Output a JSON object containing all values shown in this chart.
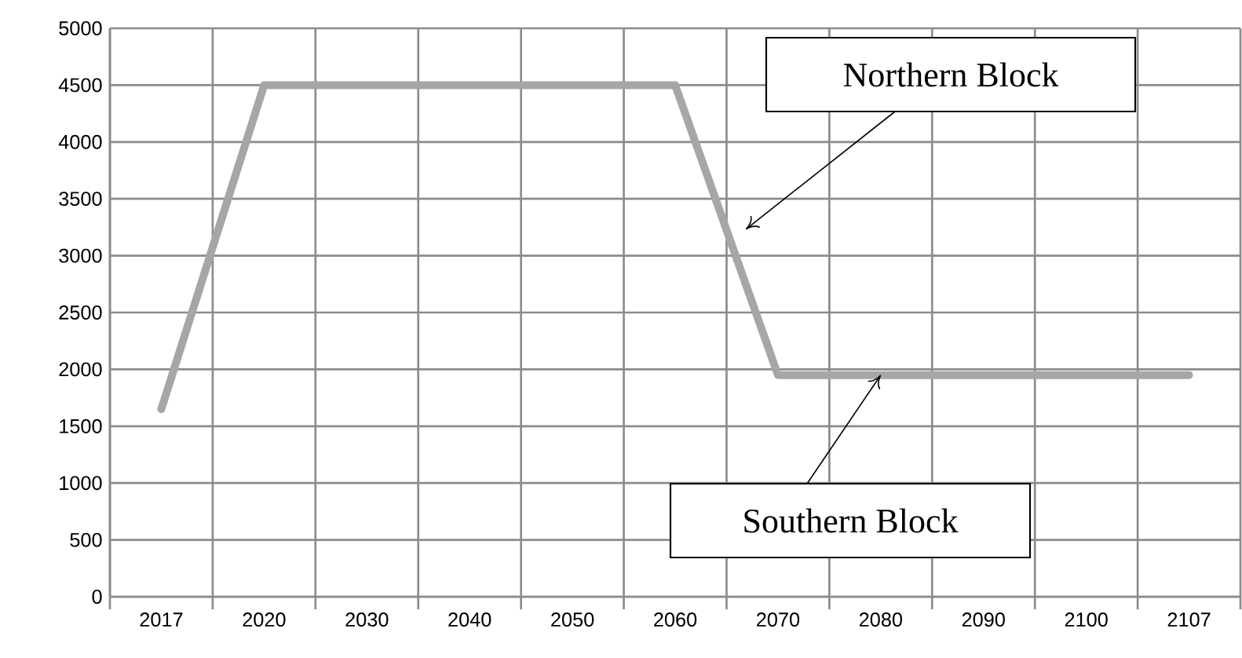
{
  "chart_data": {
    "type": "line",
    "categories": [
      "2017",
      "2020",
      "2030",
      "2040",
      "2050",
      "2060",
      "2070",
      "2080",
      "2090",
      "2100",
      "2107"
    ],
    "values": [
      1650,
      4500,
      4500,
      4500,
      4500,
      4500,
      1950,
      1950,
      1950,
      1950,
      1950
    ],
    "color": "#a6a6a6",
    "ylim": [
      0,
      5000
    ],
    "yticks": [
      0,
      500,
      1000,
      1500,
      2000,
      2500,
      3000,
      3500,
      4000,
      4500,
      5000
    ],
    "grid": true,
    "annotations": [
      "Northern Block",
      {
        "text": "Southern Block",
        "x": "2080",
        "y": 1950
      }
    ]
  }
}
